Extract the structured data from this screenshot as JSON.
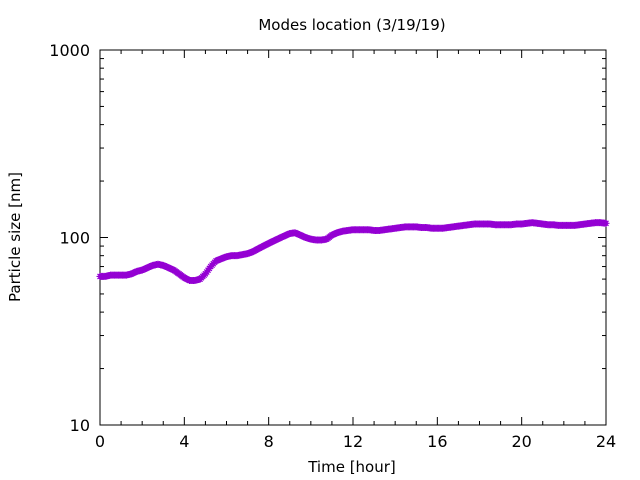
{
  "chart_data": {
    "type": "line",
    "title": "Modes location (3/19/19)",
    "xlabel": "Time [hour]",
    "ylabel": "Particle size [nm]",
    "xlim": [
      0,
      24
    ],
    "ylim": [
      10,
      1000
    ],
    "yscale": "log",
    "grid": false,
    "legend": "none",
    "x_ticks": [
      0,
      4,
      8,
      12,
      16,
      20,
      24
    ],
    "x_tick_labels": [
      "0",
      "4",
      "8",
      "12",
      "16",
      "20",
      "24"
    ],
    "y_ticks": [
      10,
      100,
      1000
    ],
    "y_tick_labels": [
      "10",
      "100",
      "1000"
    ],
    "series": [
      {
        "color": "#9400d3",
        "marker": "star",
        "x": [
          0,
          0.25,
          0.5,
          0.75,
          1.0,
          1.25,
          1.5,
          1.75,
          2.0,
          2.25,
          2.5,
          2.75,
          3.0,
          3.25,
          3.5,
          3.75,
          4.0,
          4.25,
          4.5,
          4.75,
          5.0,
          5.25,
          5.5,
          5.75,
          6.0,
          6.25,
          6.5,
          6.75,
          7.0,
          7.25,
          7.5,
          7.75,
          8.0,
          8.25,
          8.5,
          8.75,
          9.0,
          9.25,
          9.5,
          9.75,
          10.0,
          10.25,
          10.5,
          10.75,
          11.0,
          11.25,
          11.5,
          11.75,
          12.0,
          12.25,
          12.5,
          12.75,
          13.0,
          13.25,
          13.5,
          13.75,
          14.0,
          14.25,
          14.5,
          14.75,
          15.0,
          15.25,
          15.5,
          15.75,
          16.0,
          16.25,
          16.5,
          16.75,
          17.0,
          17.25,
          17.5,
          17.75,
          18.0,
          18.25,
          18.5,
          18.75,
          19.0,
          19.25,
          19.5,
          19.75,
          20.0,
          20.25,
          20.5,
          20.75,
          21.0,
          21.25,
          21.5,
          21.75,
          22.0,
          22.25,
          22.5,
          22.75,
          23.0,
          23.25,
          23.5,
          23.75,
          24.0
        ],
        "y": [
          62,
          62,
          63,
          63,
          63,
          63,
          64,
          66,
          67,
          69,
          71,
          72,
          71,
          69,
          67,
          64,
          61,
          59,
          59,
          60,
          64,
          70,
          75,
          77,
          79,
          80,
          80,
          81,
          82,
          84,
          87,
          90,
          93,
          96,
          99,
          102,
          105,
          106,
          103,
          100,
          98,
          97,
          97,
          98,
          103,
          106,
          108,
          109,
          110,
          110,
          110,
          110,
          109,
          109,
          110,
          111,
          112,
          113,
          114,
          114,
          114,
          113,
          113,
          112,
          112,
          112,
          113,
          114,
          115,
          116,
          117,
          118,
          118,
          118,
          118,
          117,
          117,
          117,
          117,
          118,
          118,
          119,
          120,
          119,
          118,
          117,
          117,
          116,
          116,
          116,
          116,
          117,
          118,
          119,
          120,
          120,
          119
        ]
      }
    ]
  }
}
